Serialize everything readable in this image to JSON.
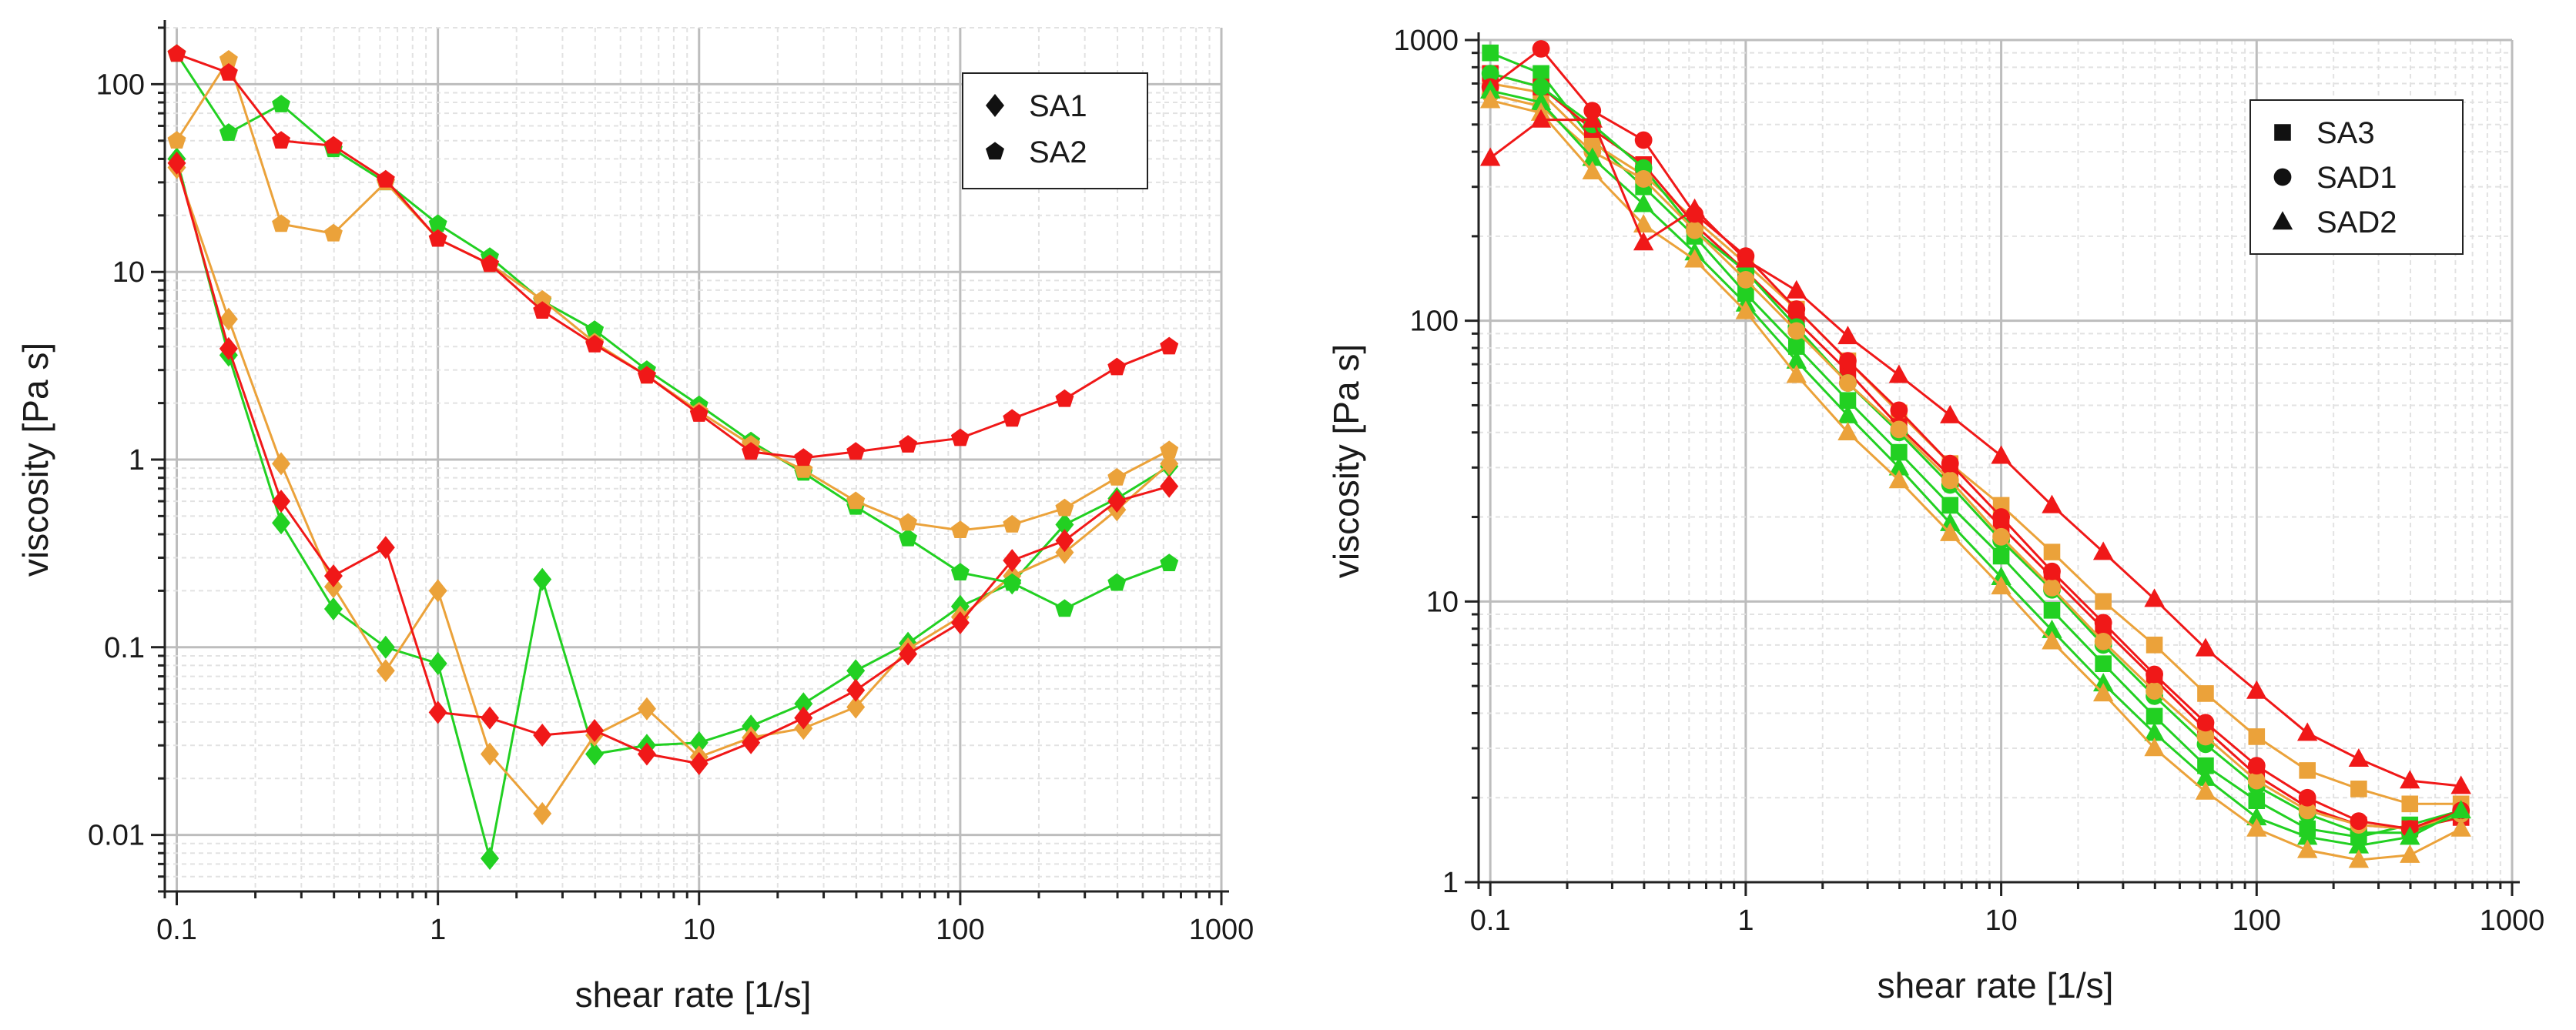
{
  "colors": {
    "green": "#22d022",
    "orange": "#eba23a",
    "red": "#f01818",
    "axis": "#222222",
    "grid_major": "#bdbdbd",
    "grid_minor": "#e2e2e2"
  },
  "chart_data": [
    {
      "type": "line",
      "xscale": "log",
      "yscale": "log",
      "xlabel": "shear rate [1/s]",
      "ylabel": "viscosity [Pa s]",
      "xlim": [
        0.09,
        1000
      ],
      "ylim": [
        0.005,
        200
      ],
      "xticks": [
        {
          "v": 0.1,
          "label": "0.1"
        },
        {
          "v": 1,
          "label": "1"
        },
        {
          "v": 10,
          "label": "10"
        },
        {
          "v": 100,
          "label": "100"
        },
        {
          "v": 1000,
          "label": "1000"
        }
      ],
      "yticks": [
        {
          "v": 0.01,
          "label": "0.01"
        },
        {
          "v": 0.1,
          "label": "0.1"
        },
        {
          "v": 1,
          "label": "1"
        },
        {
          "v": 10,
          "label": "10"
        },
        {
          "v": 100,
          "label": "100"
        }
      ],
      "legend": [
        {
          "name": "SA1",
          "marker": "diamond"
        },
        {
          "name": "SA2",
          "marker": "pentagon"
        }
      ],
      "x": [
        0.1,
        0.158,
        0.251,
        0.398,
        0.631,
        1,
        1.58,
        2.51,
        3.98,
        6.31,
        10,
        15.8,
        25.1,
        39.8,
        63.1,
        100,
        158,
        251,
        398,
        631
      ],
      "series": [
        {
          "name": "SA1",
          "color": "green",
          "marker": "diamond",
          "values": [
            40,
            3.6,
            0.46,
            0.16,
            0.1,
            0.082,
            0.0075,
            0.23,
            0.027,
            0.03,
            0.031,
            0.038,
            0.05,
            0.075,
            0.105,
            0.165,
            0.22,
            0.45,
            0.62,
            0.92
          ]
        },
        {
          "name": "SA1",
          "color": "orange",
          "marker": "diamond",
          "values": [
            36,
            5.6,
            0.95,
            0.21,
            0.075,
            0.2,
            0.027,
            0.013,
            0.034,
            0.047,
            0.026,
            0.033,
            0.037,
            0.048,
            0.098,
            0.145,
            0.24,
            0.32,
            0.54,
            0.95
          ]
        },
        {
          "name": "SA1",
          "color": "red",
          "marker": "diamond",
          "values": [
            38,
            3.9,
            0.6,
            0.24,
            0.34,
            0.045,
            0.042,
            0.034,
            0.036,
            0.027,
            0.024,
            0.031,
            0.042,
            0.059,
            0.092,
            0.135,
            0.29,
            0.37,
            0.6,
            0.72
          ]
        },
        {
          "name": "SA2",
          "color": "green",
          "marker": "pentagon",
          "values": [
            145,
            55,
            78,
            45,
            30,
            18,
            12,
            7,
            4.9,
            3,
            1.95,
            1.25,
            0.85,
            0.56,
            0.38,
            0.25,
            0.22,
            0.16,
            0.22,
            0.28
          ]
        },
        {
          "name": "SA2",
          "color": "orange",
          "marker": "pentagon",
          "values": [
            50,
            135,
            18,
            16,
            30,
            15,
            11,
            7.1,
            4.2,
            2.8,
            1.8,
            1.2,
            0.88,
            0.6,
            0.46,
            0.42,
            0.45,
            0.55,
            0.8,
            1.12
          ]
        },
        {
          "name": "SA2",
          "color": "red",
          "marker": "pentagon",
          "values": [
            145,
            115,
            50,
            47,
            31,
            15,
            11,
            6.2,
            4.1,
            2.8,
            1.75,
            1.1,
            1.02,
            1.1,
            1.2,
            1.3,
            1.65,
            2.1,
            3.1,
            4
          ]
        }
      ]
    },
    {
      "type": "line",
      "xscale": "log",
      "yscale": "log",
      "xlabel": "shear rate [1/s]",
      "ylabel": "viscosity [Pa s]",
      "xlim": [
        0.09,
        1000
      ],
      "ylim": [
        1,
        1000
      ],
      "xticks": [
        {
          "v": 0.1,
          "label": "0.1"
        },
        {
          "v": 1,
          "label": "1"
        },
        {
          "v": 10,
          "label": "10"
        },
        {
          "v": 100,
          "label": "100"
        },
        {
          "v": 1000,
          "label": "1000"
        }
      ],
      "yticks": [
        {
          "v": 1,
          "label": "1"
        },
        {
          "v": 10,
          "label": "10"
        },
        {
          "v": 100,
          "label": "100"
        },
        {
          "v": 1000,
          "label": "1000"
        }
      ],
      "legend": [
        {
          "name": "SA3",
          "marker": "square"
        },
        {
          "name": "SAD1",
          "marker": "circle"
        },
        {
          "name": "SAD2",
          "marker": "triangle"
        }
      ],
      "x": [
        0.1,
        0.158,
        0.251,
        0.398,
        0.631,
        1,
        1.58,
        2.51,
        3.98,
        6.31,
        10,
        15.8,
        25.1,
        39.8,
        63.1,
        100,
        158,
        251,
        398,
        631
      ],
      "series": [
        {
          "name": "SA3",
          "color": "green",
          "marker": "square",
          "values": [
            900,
            760,
            440,
            300,
            200,
            125,
            81,
            52,
            34,
            22,
            14.5,
            9.3,
            6,
            3.9,
            2.6,
            1.95,
            1.55,
            1.45,
            1.6,
            1.8
          ]
        },
        {
          "name": "SA3",
          "color": "orange",
          "marker": "square",
          "values": [
            700,
            650,
            430,
            330,
            230,
            160,
            110,
            72,
            47,
            31,
            22,
            15,
            10,
            7,
            4.7,
            3.3,
            2.5,
            2.15,
            1.9,
            1.9
          ]
        },
        {
          "name": "SA3",
          "color": "red",
          "marker": "square",
          "values": [
            760,
            680,
            480,
            360,
            220,
            150,
            100,
            66,
            42,
            28,
            18.5,
            12.2,
            8,
            5.3,
            3.5,
            2.4,
            1.85,
            1.6,
            1.55,
            1.7
          ]
        },
        {
          "name": "SAD1",
          "color": "green",
          "marker": "circle",
          "values": [
            760,
            680,
            500,
            350,
            210,
            150,
            95,
            60,
            40,
            26,
            16.5,
            11,
            7,
            4.6,
            3.1,
            2.2,
            1.75,
            1.5,
            1.5,
            1.75
          ]
        },
        {
          "name": "SAD1",
          "color": "orange",
          "marker": "circle",
          "values": [
            640,
            580,
            400,
            320,
            210,
            140,
            92,
            60,
            41,
            27,
            17,
            11.2,
            7.2,
            4.8,
            3.3,
            2.3,
            1.8,
            1.6,
            1.55,
            1.75
          ]
        },
        {
          "name": "SAD1",
          "color": "red",
          "marker": "circle",
          "values": [
            680,
            930,
            560,
            440,
            240,
            170,
            110,
            72,
            48,
            31,
            20,
            12.8,
            8.4,
            5.5,
            3.7,
            2.6,
            2,
            1.65,
            1.55,
            1.8
          ]
        },
        {
          "name": "SAD2",
          "color": "green",
          "marker": "triangle",
          "values": [
            660,
            600,
            380,
            260,
            175,
            115,
            72,
            46,
            30,
            19,
            12.2,
            7.9,
            5.1,
            3.4,
            2.35,
            1.7,
            1.45,
            1.35,
            1.45,
            1.8
          ]
        },
        {
          "name": "SAD2",
          "color": "orange",
          "marker": "triangle",
          "values": [
            610,
            550,
            340,
            220,
            165,
            108,
            64,
            40,
            27,
            17.5,
            11.3,
            7.2,
            4.7,
            3,
            2.1,
            1.55,
            1.3,
            1.2,
            1.25,
            1.55
          ]
        },
        {
          "name": "SAD2",
          "color": "red",
          "marker": "triangle",
          "values": [
            380,
            520,
            520,
            190,
            250,
            165,
            128,
            88,
            64,
            46,
            33,
            22,
            15,
            10.2,
            6.8,
            4.8,
            3.4,
            2.75,
            2.3,
            2.2
          ]
        }
      ]
    }
  ]
}
